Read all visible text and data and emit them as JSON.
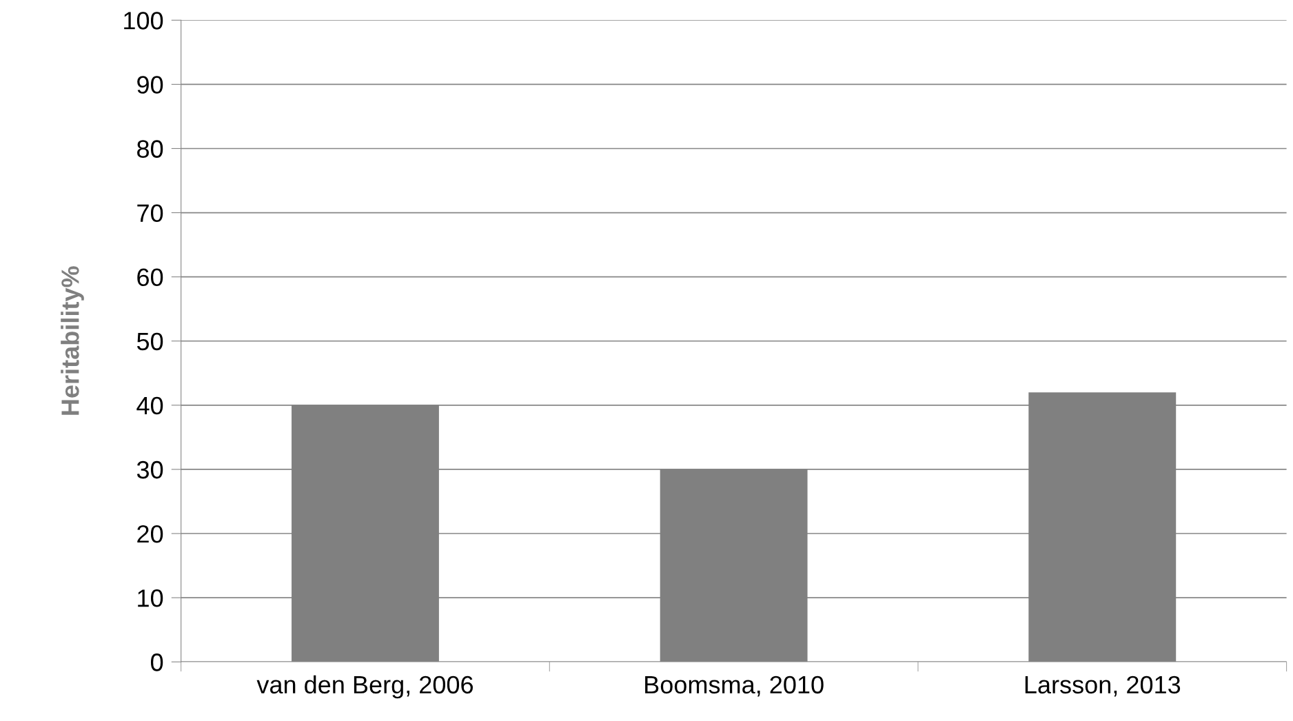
{
  "chart_data": {
    "type": "bar",
    "ylabel": "Heritability%",
    "categories": [
      "van den Berg, 2006",
      "Boomsma, 2010",
      "Larsson, 2013"
    ],
    "values": [
      40,
      30,
      42
    ],
    "color": "#808080",
    "ylim": [
      0,
      100
    ],
    "yticks": [
      0,
      10,
      20,
      30,
      40,
      50,
      60,
      70,
      80,
      90,
      100
    ],
    "grid": "y",
    "legend": false
  }
}
